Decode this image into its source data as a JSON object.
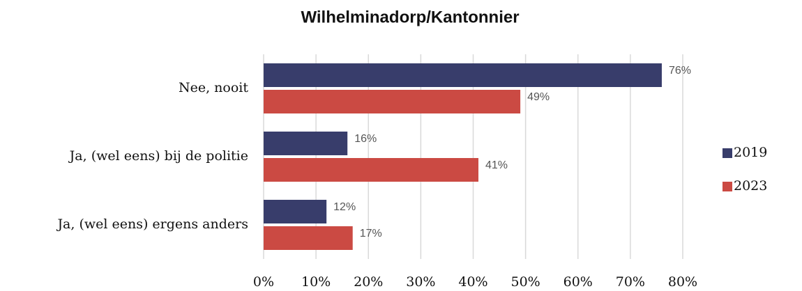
{
  "chart_data": {
    "type": "bar",
    "orientation": "horizontal",
    "title": "Wilhelminadorp/Kantonnier",
    "categories": [
      "Nee, nooit",
      "Ja, (wel eens) bij de politie",
      "Ja, (wel eens) ergens anders"
    ],
    "series": [
      {
        "name": "2019",
        "color": "#383d6b",
        "values": [
          76,
          16,
          12
        ],
        "value_labels": [
          "76%",
          "16%",
          "12%"
        ]
      },
      {
        "name": "2023",
        "color": "#cb4a43",
        "values": [
          49,
          41,
          17
        ],
        "value_labels": [
          "49%",
          "41%",
          "17%"
        ]
      }
    ],
    "xlim": [
      0,
      80
    ],
    "xticks": [
      {
        "value": 0,
        "label": "0%"
      },
      {
        "value": 10,
        "label": "10%"
      },
      {
        "value": 20,
        "label": "20%"
      },
      {
        "value": 30,
        "label": "30%"
      },
      {
        "value": 40,
        "label": "40%"
      },
      {
        "value": 50,
        "label": "50%"
      },
      {
        "value": 60,
        "label": "60%"
      },
      {
        "value": 70,
        "label": "70%"
      },
      {
        "value": 80,
        "label": "80%"
      }
    ],
    "grid": true,
    "legend": "right"
  }
}
